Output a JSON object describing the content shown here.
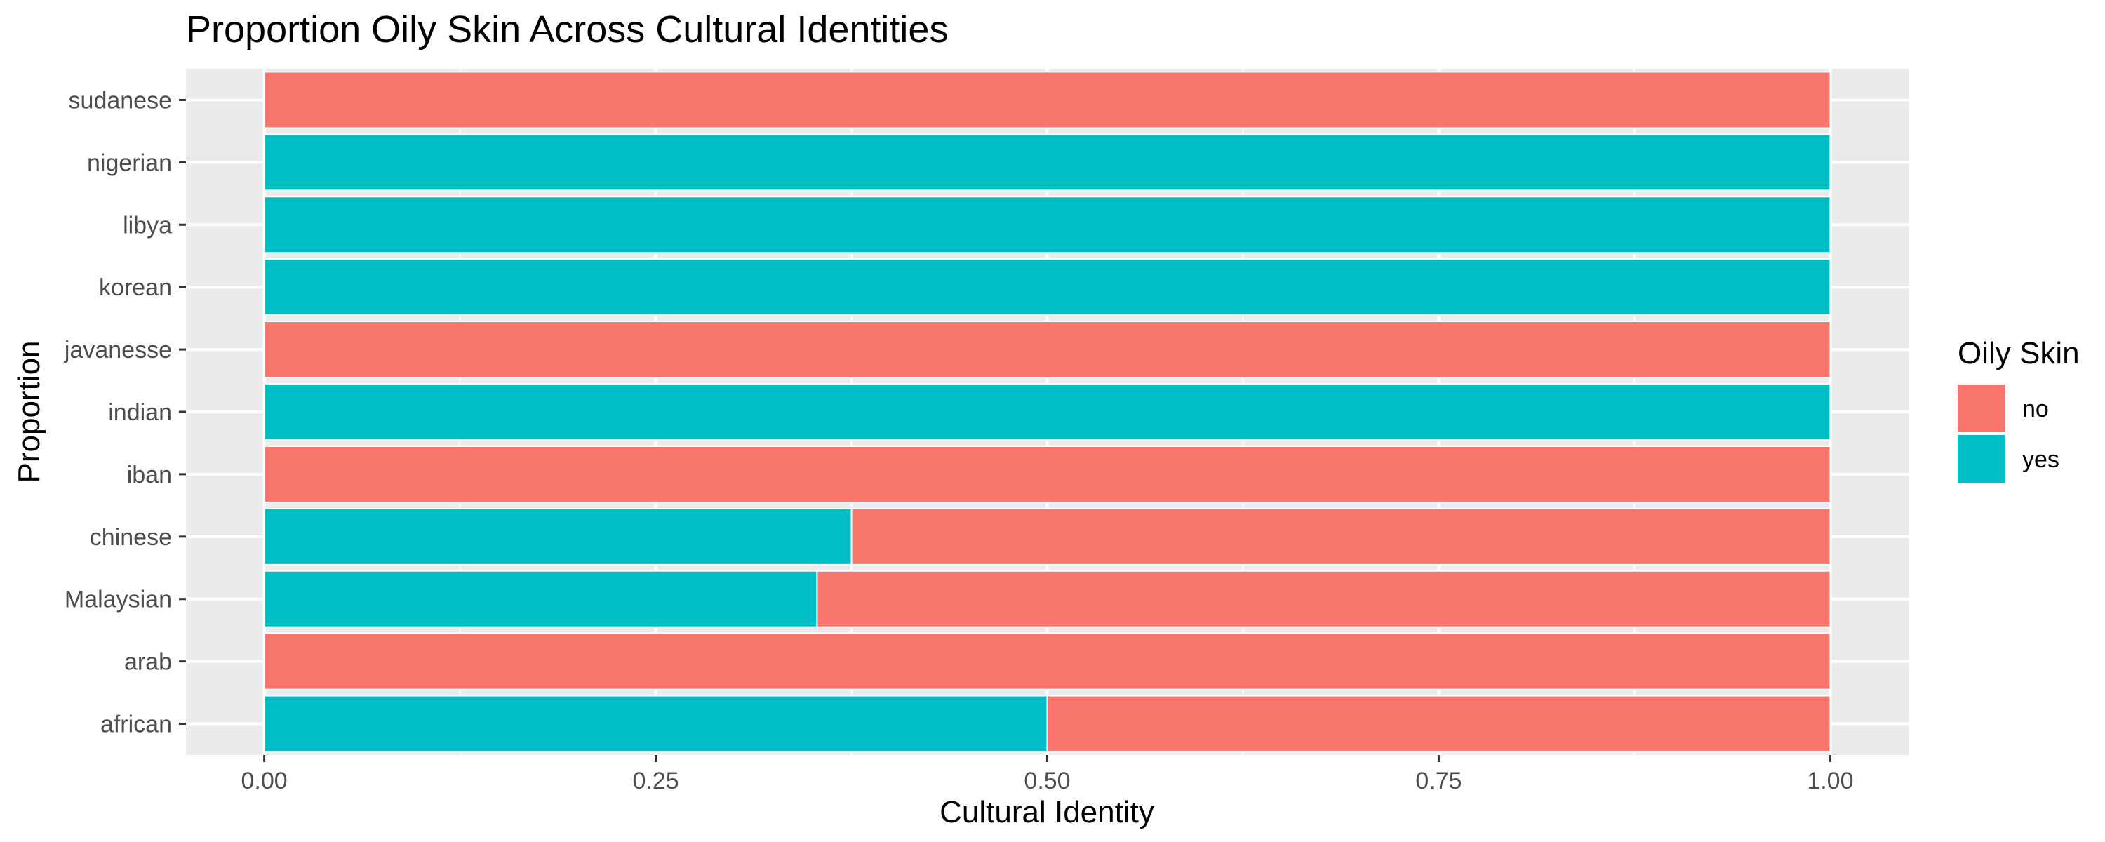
{
  "chart_data": {
    "type": "bar",
    "orientation": "horizontal",
    "stacked": true,
    "title": "Proportion Oily Skin Across Cultural Identities",
    "xlabel": "Cultural Identity",
    "ylabel": "Proportion",
    "xlim": [
      0,
      1
    ],
    "xticks": [
      "0.00",
      "0.25",
      "0.50",
      "0.75",
      "1.00"
    ],
    "xtick_values": [
      0,
      0.25,
      0.5,
      0.75,
      1.0
    ],
    "categories": [
      "african",
      "arab",
      "Malaysian",
      "chinese",
      "iban",
      "indian",
      "javanesse",
      "korean",
      "libya",
      "nigerian",
      "sudanese"
    ],
    "series": [
      {
        "name": "yes",
        "color": "#00BFC4",
        "values": [
          0.5,
          0,
          0.353,
          0.375,
          0,
          1,
          0,
          1,
          1,
          1,
          0
        ]
      },
      {
        "name": "no",
        "color": "#F8766D",
        "values": [
          0.5,
          1,
          0.647,
          0.625,
          1,
          0,
          1,
          0,
          0,
          0,
          1
        ]
      }
    ],
    "legend": {
      "title": "Oily Skin",
      "position": "right",
      "entries": [
        {
          "label": "no",
          "color": "#F8766D"
        },
        {
          "label": "yes",
          "color": "#00BFC4"
        }
      ]
    },
    "grid": true,
    "panel_background": "#EBEBEB"
  }
}
